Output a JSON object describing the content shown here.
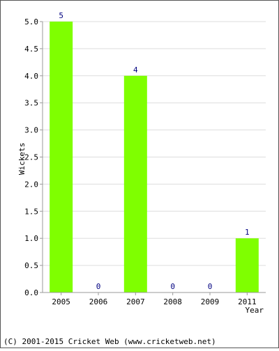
{
  "chart_data": {
    "type": "bar",
    "categories": [
      "2005",
      "2006",
      "2007",
      "2008",
      "2009",
      "2011"
    ],
    "values": [
      5,
      0,
      4,
      0,
      0,
      1
    ],
    "data_labels": [
      "5",
      "0",
      "4",
      "0",
      "0",
      "1"
    ],
    "xlabel": "Year",
    "ylabel": "Wickets",
    "ylim": [
      0,
      5
    ],
    "yticks": [
      "0.0",
      "0.5",
      "1.0",
      "1.5",
      "2.0",
      "2.5",
      "3.0",
      "3.5",
      "4.0",
      "4.5",
      "5.0"
    ],
    "grid": true,
    "colors": {
      "bar": "#7fff00",
      "data_label": "#000080",
      "grid": "#dddddd",
      "axis": "#999999"
    }
  },
  "footer": {
    "copyright": "(C) 2001-2015 Cricket Web (www.cricketweb.net)"
  }
}
